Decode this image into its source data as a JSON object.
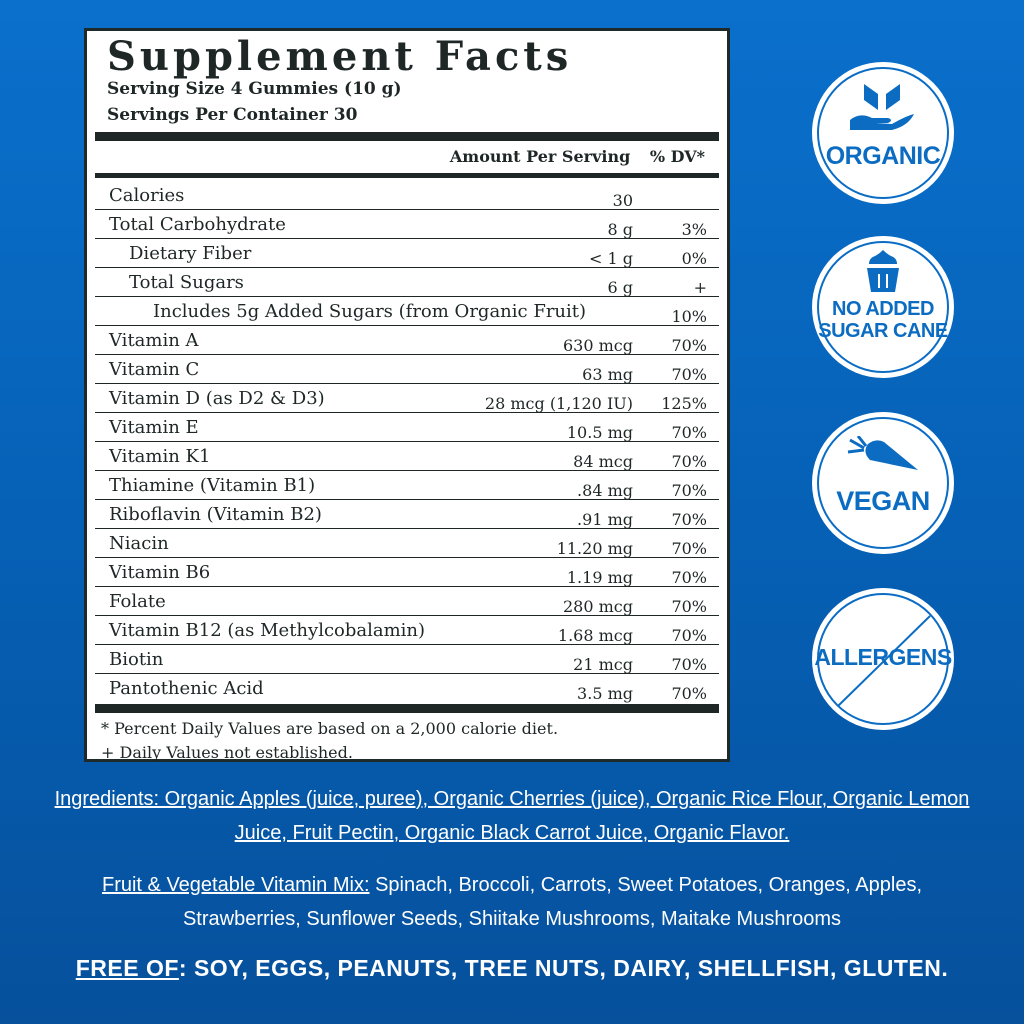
{
  "label": {
    "title": "Supplement Facts",
    "serving_size": "Serving Size 4 Gummies (10 g)",
    "servings_per_container": "Servings Per Container 30",
    "col_amount": "Amount Per Serving",
    "col_dv": "% DV*",
    "rows": [
      {
        "name": "Calories",
        "amount": "30",
        "dv": "",
        "indent": 0
      },
      {
        "name": "Total Carbohydrate",
        "amount": "8 g",
        "dv": "3%",
        "indent": 0
      },
      {
        "name": "Dietary Fiber",
        "amount": "< 1 g",
        "dv": "0%",
        "indent": 1
      },
      {
        "name": "Total Sugars",
        "amount": "6 g",
        "dv": "+",
        "indent": 1
      },
      {
        "name": "Includes 5g Added Sugars (from Organic Fruit)",
        "amount": "",
        "dv": "10%",
        "indent": 2
      },
      {
        "name": "Vitamin A",
        "amount": "630 mcg",
        "dv": "70%",
        "indent": 0
      },
      {
        "name": "Vitamin C",
        "amount": "63 mg",
        "dv": "70%",
        "indent": 0
      },
      {
        "name": "Vitamin D (as D2 & D3)",
        "amount": "28 mcg (1,120 IU)",
        "dv": "125%",
        "indent": 0
      },
      {
        "name": "Vitamin E",
        "amount": "10.5 mg",
        "dv": "70%",
        "indent": 0
      },
      {
        "name": "Vitamin K1",
        "amount": "84 mcg",
        "dv": "70%",
        "indent": 0
      },
      {
        "name": "Thiamine (Vitamin B1)",
        "amount": ".84 mg",
        "dv": "70%",
        "indent": 0
      },
      {
        "name": "Riboflavin (Vitamin B2)",
        "amount": ".91 mg",
        "dv": "70%",
        "indent": 0
      },
      {
        "name": "Niacin",
        "amount": "11.20 mg",
        "dv": "70%",
        "indent": 0
      },
      {
        "name": "Vitamin B6",
        "amount": "1.19 mg",
        "dv": "70%",
        "indent": 0
      },
      {
        "name": "Folate",
        "amount": "280 mcg",
        "dv": "70%",
        "indent": 0
      },
      {
        "name": "Vitamin B12 (as Methylcobalamin)",
        "amount": "1.68 mcg",
        "dv": "70%",
        "indent": 0
      },
      {
        "name": "Biotin",
        "amount": "21 mcg",
        "dv": "70%",
        "indent": 0
      },
      {
        "name": "Pantothenic Acid",
        "amount": "3.5 mg",
        "dv": "70%",
        "indent": 0
      }
    ],
    "footnote1": "* Percent Daily Values are based on a 2,000 calorie diet.",
    "footnote2": "+ Daily Values not established."
  },
  "badges": [
    {
      "text": "ORGANIC",
      "icon": "hand-leaves-icon"
    },
    {
      "text1": "NO ADDED",
      "text2": "SUGAR CANE",
      "icon": "cupcake-icon"
    },
    {
      "text": "VEGAN",
      "icon": "carrot-icon"
    },
    {
      "text": "ALLERGENS",
      "icon": "prohibited-slash-icon"
    }
  ],
  "ingredients": {
    "line1": "Ingredients: Organic Apples (juice, puree), Organic Cherries (juice), Organic Rice Flour, Organic Lemon",
    "line2": "Juice, Fruit Pectin, Organic Black Carrot Juice, Organic Flavor."
  },
  "vitamin_mix": {
    "label": "Fruit & Vegetable Vitamin Mix:",
    "line1": " Spinach, Broccoli, Carrots, Sweet Potatoes, Oranges, Apples,",
    "line2": "Strawberries, Sunflower Seeds, Shiitake Mushrooms, Maitake Mushrooms"
  },
  "free_of": {
    "label": "FREE OF",
    "text": ": SOY, EGGS, PEANUTS, TREE NUTS, DAIRY, SHELLFISH, GLUTEN."
  },
  "colors": {
    "background": "#0661b6",
    "badge_text": "#0b6cc2",
    "label_ink": "#1e2626"
  }
}
